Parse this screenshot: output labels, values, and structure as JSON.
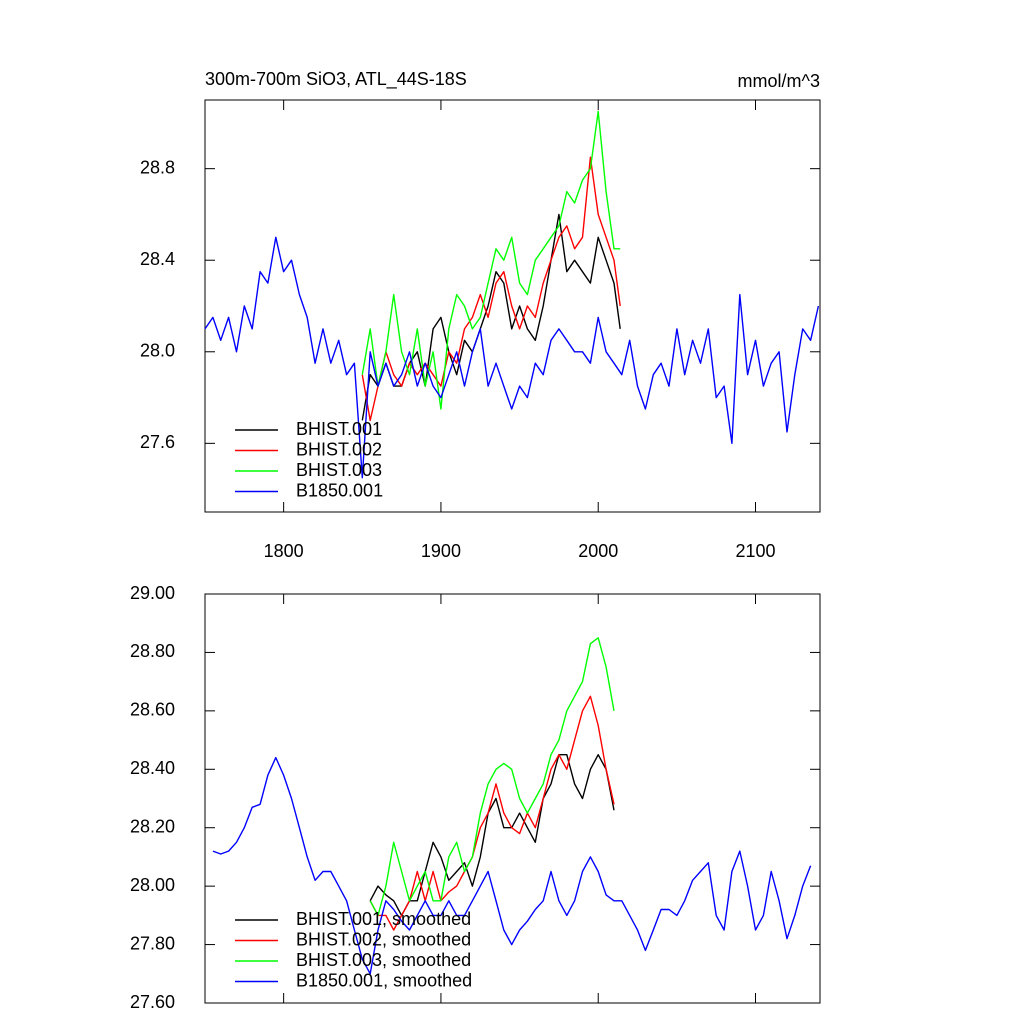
{
  "chart_data": [
    {
      "type": "line",
      "title": "300m-700m SiO3, ATL_44S-18S",
      "y_unit": "mmol/m^3",
      "xlim": [
        1750,
        2141
      ],
      "xticks": [
        1800,
        1900,
        2000,
        2100
      ],
      "ylim": [
        27.3,
        29.1
      ],
      "yticks": [
        27.6,
        {
          "value": 28,
          "label": "28.0"
        },
        28.4,
        28.8
      ],
      "legend": "lower left",
      "series": [
        {
          "name": "BHIST.001",
          "color": "#000000",
          "x": [
            1850,
            1855,
            1860,
            1865,
            1870,
            1875,
            1880,
            1885,
            1890,
            1895,
            1900,
            1905,
            1910,
            1915,
            1920,
            1925,
            1930,
            1935,
            1940,
            1945,
            1950,
            1955,
            1960,
            1965,
            1970,
            1975,
            1980,
            1985,
            1990,
            1995,
            2000,
            2005,
            2010,
            2014
          ],
          "values": [
            27.7,
            27.9,
            27.85,
            27.95,
            27.85,
            27.85,
            27.95,
            28.0,
            27.85,
            28.1,
            28.15,
            28.0,
            27.9,
            28.05,
            28.0,
            28.1,
            28.2,
            28.35,
            28.3,
            28.1,
            28.2,
            28.1,
            28.05,
            28.2,
            28.4,
            28.6,
            28.35,
            28.4,
            28.35,
            28.3,
            28.5,
            28.4,
            28.3,
            28.1
          ]
        },
        {
          "name": "BHIST.002",
          "color": "#ff0000",
          "x": [
            1850,
            1855,
            1860,
            1865,
            1870,
            1875,
            1880,
            1885,
            1890,
            1895,
            1900,
            1905,
            1910,
            1915,
            1920,
            1925,
            1930,
            1935,
            1940,
            1945,
            1950,
            1955,
            1960,
            1965,
            1970,
            1975,
            1980,
            1985,
            1990,
            1995,
            2000,
            2005,
            2010,
            2014
          ],
          "values": [
            27.9,
            27.7,
            27.85,
            28.0,
            27.9,
            27.85,
            27.95,
            27.9,
            27.95,
            27.9,
            27.85,
            28.0,
            27.95,
            28.1,
            28.15,
            28.25,
            28.15,
            28.3,
            28.35,
            28.2,
            28.1,
            28.2,
            28.15,
            28.3,
            28.4,
            28.5,
            28.55,
            28.45,
            28.5,
            28.85,
            28.6,
            28.5,
            28.4,
            28.2
          ]
        },
        {
          "name": "BHIST.003",
          "color": "#00ff00",
          "x": [
            1850,
            1855,
            1860,
            1865,
            1870,
            1875,
            1880,
            1885,
            1890,
            1895,
            1900,
            1905,
            1910,
            1915,
            1920,
            1925,
            1930,
            1935,
            1940,
            1945,
            1950,
            1955,
            1960,
            1965,
            1970,
            1975,
            1980,
            1985,
            1990,
            1995,
            2000,
            2005,
            2010,
            2014
          ],
          "values": [
            27.9,
            28.1,
            27.85,
            28.0,
            28.25,
            28.0,
            27.9,
            28.1,
            27.85,
            28.0,
            27.75,
            28.1,
            28.25,
            28.2,
            28.1,
            28.15,
            28.3,
            28.45,
            28.4,
            28.5,
            28.3,
            28.25,
            28.4,
            28.45,
            28.5,
            28.55,
            28.7,
            28.65,
            28.75,
            28.8,
            29.05,
            28.7,
            28.45,
            28.45
          ]
        },
        {
          "name": "B1850.001",
          "color": "#0000ff",
          "x": [
            1750,
            1755,
            1760,
            1765,
            1770,
            1775,
            1780,
            1785,
            1790,
            1795,
            1800,
            1805,
            1810,
            1815,
            1820,
            1825,
            1830,
            1835,
            1840,
            1845,
            1850,
            1855,
            1860,
            1865,
            1870,
            1875,
            1880,
            1885,
            1890,
            1895,
            1900,
            1905,
            1910,
            1915,
            1920,
            1925,
            1930,
            1935,
            1940,
            1945,
            1950,
            1955,
            1960,
            1965,
            1970,
            1975,
            1980,
            1985,
            1990,
            1995,
            2000,
            2005,
            2010,
            2015,
            2020,
            2025,
            2030,
            2035,
            2040,
            2045,
            2050,
            2055,
            2060,
            2065,
            2070,
            2075,
            2080,
            2085,
            2090,
            2095,
            2100,
            2105,
            2110,
            2115,
            2120,
            2125,
            2130,
            2135,
            2140
          ],
          "values": [
            28.1,
            28.15,
            28.05,
            28.15,
            28.0,
            28.2,
            28.1,
            28.35,
            28.3,
            28.5,
            28.35,
            28.4,
            28.25,
            28.15,
            27.95,
            28.1,
            27.95,
            28.05,
            27.9,
            27.95,
            27.45,
            28.0,
            27.85,
            27.95,
            27.85,
            27.9,
            28.0,
            27.85,
            27.95,
            27.85,
            27.8,
            27.9,
            28.0,
            27.85,
            28.0,
            28.1,
            27.85,
            27.95,
            27.85,
            27.75,
            27.85,
            27.8,
            27.95,
            27.9,
            28.05,
            28.1,
            28.05,
            28.0,
            28.0,
            27.95,
            28.15,
            28.0,
            27.95,
            27.9,
            28.05,
            27.85,
            27.75,
            27.9,
            27.95,
            27.85,
            28.1,
            27.9,
            28.05,
            27.95,
            28.1,
            27.8,
            27.85,
            27.6,
            28.25,
            27.9,
            28.05,
            27.85,
            27.95,
            28.0,
            27.65,
            27.9,
            28.1,
            28.05,
            28.2
          ]
        }
      ]
    },
    {
      "type": "line",
      "xlim": [
        1750,
        2141
      ],
      "xticks": [
        1800,
        1900,
        2000,
        2100
      ],
      "ylim": [
        27.6,
        29.0
      ],
      "yticks": [
        {
          "value": 27.6,
          "label": "27.60"
        },
        {
          "value": 27.8,
          "label": "27.80"
        },
        {
          "value": 28,
          "label": "28.00"
        },
        {
          "value": 28.2,
          "label": "28.20"
        },
        {
          "value": 28.4,
          "label": "28.40"
        },
        {
          "value": 28.6,
          "label": "28.60"
        },
        {
          "value": 28.8,
          "label": "28.80"
        },
        {
          "value": 29,
          "label": "29.00"
        }
      ],
      "legend": "lower left",
      "series": [
        {
          "name": "BHIST.001, smoothed",
          "color": "#000000",
          "x": [
            1855,
            1860,
            1865,
            1870,
            1875,
            1880,
            1885,
            1890,
            1895,
            1900,
            1905,
            1910,
            1915,
            1920,
            1925,
            1930,
            1935,
            1940,
            1945,
            1950,
            1955,
            1960,
            1965,
            1970,
            1975,
            1980,
            1985,
            1990,
            1995,
            2000,
            2005,
            2010
          ],
          "values": [
            27.95,
            28.0,
            27.97,
            27.95,
            27.9,
            27.95,
            27.95,
            28.05,
            28.15,
            28.1,
            28.02,
            28.05,
            28.08,
            28.0,
            28.1,
            28.25,
            28.3,
            28.2,
            28.2,
            28.25,
            28.2,
            28.15,
            28.3,
            28.35,
            28.45,
            28.45,
            28.35,
            28.3,
            28.4,
            28.45,
            28.4,
            28.26
          ]
        },
        {
          "name": "BHIST.002, smoothed",
          "color": "#ff0000",
          "x": [
            1855,
            1860,
            1865,
            1870,
            1875,
            1880,
            1885,
            1890,
            1895,
            1900,
            1905,
            1910,
            1915,
            1920,
            1925,
            1930,
            1935,
            1940,
            1945,
            1950,
            1955,
            1960,
            1965,
            1970,
            1975,
            1980,
            1985,
            1990,
            1995,
            2000,
            2005,
            2010
          ],
          "values": [
            27.95,
            27.9,
            27.9,
            27.85,
            27.9,
            27.95,
            28.05,
            27.95,
            28.05,
            27.95,
            27.98,
            28.0,
            28.05,
            28.1,
            28.2,
            28.25,
            28.35,
            28.25,
            28.2,
            28.18,
            28.25,
            28.2,
            28.3,
            28.4,
            28.45,
            28.4,
            28.5,
            28.6,
            28.65,
            28.55,
            28.4,
            28.28
          ]
        },
        {
          "name": "BHIST.003, smoothed",
          "color": "#00ff00",
          "x": [
            1855,
            1860,
            1865,
            1870,
            1875,
            1880,
            1885,
            1890,
            1895,
            1900,
            1905,
            1910,
            1915,
            1920,
            1925,
            1930,
            1935,
            1940,
            1945,
            1950,
            1955,
            1960,
            1965,
            1970,
            1975,
            1980,
            1985,
            1990,
            1995,
            2000,
            2005,
            2010
          ],
          "values": [
            27.95,
            27.9,
            28.0,
            28.15,
            28.05,
            27.95,
            28.0,
            28.05,
            27.95,
            27.95,
            28.1,
            28.15,
            28.05,
            28.1,
            28.25,
            28.35,
            28.4,
            28.42,
            28.4,
            28.3,
            28.25,
            28.3,
            28.35,
            28.45,
            28.5,
            28.6,
            28.65,
            28.7,
            28.83,
            28.85,
            28.75,
            28.6
          ]
        },
        {
          "name": "B1850.001, smoothed",
          "color": "#0000ff",
          "x": [
            1755,
            1760,
            1765,
            1770,
            1775,
            1780,
            1785,
            1790,
            1795,
            1800,
            1805,
            1810,
            1815,
            1820,
            1825,
            1830,
            1835,
            1840,
            1845,
            1850,
            1855,
            1860,
            1865,
            1870,
            1875,
            1880,
            1885,
            1890,
            1895,
            1900,
            1905,
            1910,
            1915,
            1920,
            1925,
            1930,
            1935,
            1940,
            1945,
            1950,
            1955,
            1960,
            1965,
            1970,
            1975,
            1980,
            1985,
            1990,
            1995,
            2000,
            2005,
            2010,
            2015,
            2020,
            2025,
            2030,
            2035,
            2040,
            2045,
            2050,
            2055,
            2060,
            2065,
            2070,
            2075,
            2080,
            2085,
            2090,
            2095,
            2100,
            2105,
            2110,
            2115,
            2120,
            2125,
            2130,
            2135
          ],
          "values": [
            28.12,
            28.11,
            28.12,
            28.15,
            28.2,
            28.27,
            28.28,
            28.38,
            28.44,
            28.38,
            28.3,
            28.2,
            28.1,
            28.02,
            28.05,
            28.05,
            28.0,
            27.95,
            27.85,
            27.75,
            27.7,
            27.85,
            27.95,
            27.92,
            27.88,
            27.85,
            27.9,
            27.95,
            27.9,
            27.9,
            27.95,
            27.9,
            27.9,
            27.95,
            28.0,
            28.05,
            27.95,
            27.85,
            27.8,
            27.85,
            27.88,
            27.92,
            27.95,
            28.05,
            27.95,
            27.9,
            27.95,
            28.05,
            28.1,
            28.05,
            27.97,
            27.95,
            27.95,
            27.9,
            27.85,
            27.78,
            27.85,
            27.92,
            27.92,
            27.9,
            27.95,
            28.02,
            28.05,
            28.08,
            27.9,
            27.85,
            28.05,
            28.12,
            28.0,
            27.85,
            27.9,
            28.05,
            27.95,
            27.82,
            27.9,
            28.0,
            28.07
          ]
        }
      ]
    }
  ]
}
